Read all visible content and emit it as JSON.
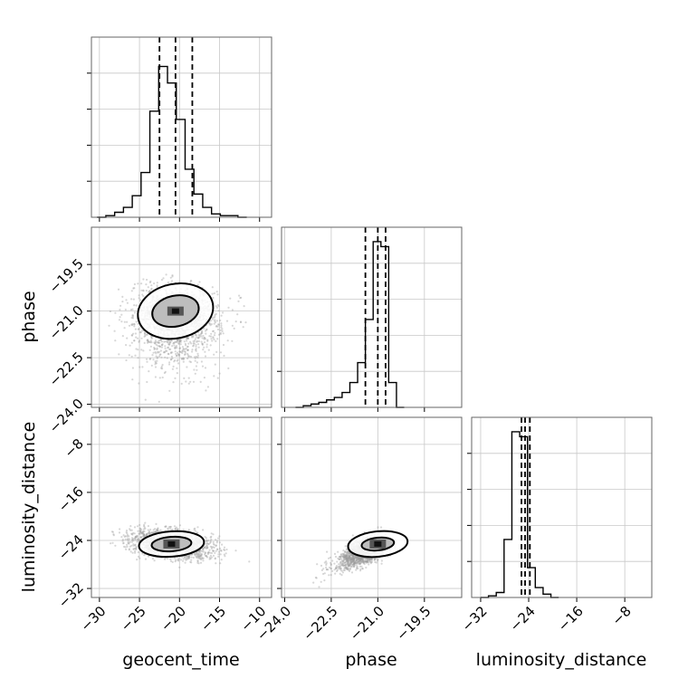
{
  "chart_data": {
    "type": "corner",
    "parameters": [
      "geocent_time",
      "phase",
      "luminosity_distance"
    ],
    "axis_labels": {
      "x": [
        "geocent_time",
        "phase",
        "luminosity_distance"
      ],
      "y": [
        "",
        "phase",
        "luminosity_distance"
      ]
    },
    "ranges": {
      "geocent_time": [
        -31,
        -8.5
      ],
      "phase": [
        -24.1,
        -18.3
      ],
      "luminosity_distance": [
        -33.5,
        -3.5
      ]
    },
    "ticks": {
      "geocent_time": [
        -30,
        -25,
        -20,
        -15,
        -10
      ],
      "phase": [
        -24.0,
        -22.5,
        -21.0,
        -19.5
      ],
      "luminosity_distance": [
        -32,
        -24,
        -16,
        -8
      ]
    },
    "tick_labels": {
      "geocent_time": [
        "−30",
        "−25",
        "−20",
        "−15",
        "−10"
      ],
      "phase": [
        "−24.0",
        "−22.5",
        "−21.0",
        "−19.5"
      ],
      "luminosity_distance": [
        "−32",
        "−24",
        "−16",
        "−8"
      ]
    },
    "grid": true,
    "quantiles": {
      "geocent_time": [
        -22.5,
        -20.5,
        -18.4
      ],
      "phase": [
        -21.4,
        -21.0,
        -20.75
      ],
      "luminosity_distance": [
        -25.2,
        -24.6,
        -23.8
      ]
    },
    "histograms": {
      "geocent_time": {
        "edges": [
          -30.3,
          -29.2,
          -28.1,
          -27.0,
          -25.9,
          -24.8,
          -23.7,
          -22.6,
          -21.5,
          -20.4,
          -19.3,
          -18.2,
          -17.1,
          -16.0,
          -14.9,
          -13.8,
          -12.7,
          -11.6
        ],
        "counts": [
          0.0,
          0.01,
          0.03,
          0.06,
          0.13,
          0.27,
          0.64,
          0.91,
          0.81,
          0.59,
          0.29,
          0.14,
          0.06,
          0.02,
          0.01,
          0.01,
          0.0
        ]
      },
      "phase": {
        "edges": [
          -23.65,
          -23.4,
          -23.15,
          -22.9,
          -22.65,
          -22.4,
          -22.15,
          -21.9,
          -21.65,
          -21.4,
          -21.15,
          -20.9,
          -20.65,
          -20.4,
          -20.15
        ],
        "counts": [
          0.0,
          0.01,
          0.02,
          0.03,
          0.045,
          0.06,
          0.09,
          0.15,
          0.27,
          0.53,
          1.0,
          0.97,
          0.15,
          0.0
        ]
      },
      "luminosity_distance": {
        "edges": [
          -32.0,
          -30.7,
          -29.4,
          -28.1,
          -26.8,
          -25.5,
          -24.2,
          -22.9,
          -21.6,
          -20.3,
          -19.0
        ],
        "counts": [
          0.0,
          0.01,
          0.03,
          0.35,
          1.0,
          0.97,
          0.18,
          0.06,
          0.02,
          0.0
        ]
      }
    },
    "scatter_2d": [
      {
        "x": "geocent_time",
        "y": "phase",
        "center": [
          -20.5,
          -21.0
        ],
        "spread": [
          2.8,
          0.75
        ]
      },
      {
        "x": "geocent_time",
        "y": "luminosity_distance",
        "center": [
          -21.0,
          -24.6
        ],
        "spread": [
          2.6,
          2.2
        ]
      },
      {
        "x": "phase",
        "y": "luminosity_distance",
        "center": [
          -21.0,
          -24.6
        ],
        "spread": [
          0.8,
          2.2
        ]
      }
    ]
  }
}
